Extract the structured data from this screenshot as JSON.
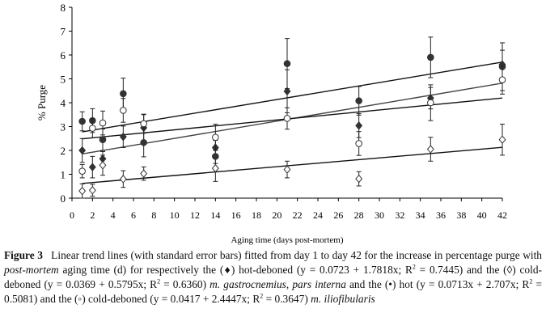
{
  "chart_data": {
    "type": "scatter",
    "xlabel": "Aging time (days post-mortem)",
    "ylabel": "% Purge",
    "xlim": [
      0,
      42
    ],
    "ylim": [
      0,
      8
    ],
    "xticks": [
      0,
      2,
      4,
      6,
      8,
      10,
      12,
      14,
      16,
      18,
      20,
      22,
      24,
      26,
      28,
      30,
      32,
      34,
      36,
      38,
      40,
      42
    ],
    "yticks": [
      0,
      1,
      2,
      3,
      4,
      5,
      6,
      7,
      8
    ],
    "grid": false,
    "error_bars": "standard error",
    "x": [
      1,
      2,
      3,
      5,
      7,
      14,
      21,
      28,
      35,
      42
    ],
    "series": [
      {
        "marker": "filled-diamond",
        "values": [
          2.0,
          1.3,
          1.65,
          2.57,
          2.95,
          2.12,
          4.48,
          3.04,
          4.19,
          5.6
        ],
        "se": [
          0.5,
          0.45,
          0.3,
          0.45,
          0.55,
          0.3,
          0.9,
          0.5,
          0.45,
          0.6
        ],
        "trend": {
          "slope": 0.0723,
          "intercept": 1.7818
        },
        "color": "#444444"
      },
      {
        "marker": "open-diamond",
        "values": [
          0.3,
          0.33,
          1.38,
          0.8,
          1.03,
          1.25,
          1.2,
          0.81,
          2.05,
          2.45
        ],
        "se": [
          0.3,
          0.25,
          0.42,
          0.35,
          0.28,
          0.55,
          0.35,
          0.3,
          0.5,
          0.65
        ],
        "trend": {
          "slope": 0.0369,
          "intercept": 0.5795
        },
        "color": "#111111"
      },
      {
        "marker": "filled-circle",
        "values": [
          3.22,
          3.25,
          2.45,
          4.38,
          2.33,
          1.75,
          5.64,
          4.08,
          5.9,
          5.51
        ],
        "se": [
          0.4,
          0.5,
          0.45,
          0.65,
          0.6,
          0.3,
          1.05,
          0.6,
          0.85,
          1.0
        ],
        "trend": {
          "slope": 0.0713,
          "intercept": 2.707
        },
        "color": "#111111"
      },
      {
        "marker": "open-circle",
        "values": [
          1.13,
          2.93,
          3.15,
          3.68,
          3.12,
          2.55,
          3.34,
          2.29,
          4.0,
          4.96
        ],
        "se": [
          0.28,
          0.4,
          0.5,
          0.5,
          0.4,
          0.55,
          0.45,
          0.5,
          0.75,
          0.6
        ],
        "trend": {
          "slope": 0.0417,
          "intercept": 2.4447
        },
        "color": "#111111"
      }
    ]
  },
  "caption": [
    {
      "text": "Figure 3",
      "style": "b"
    },
    {
      "text": "  Linear trend lines (with standard error bars) fitted from day 1 to day 42 for the increase in percentage purge with ",
      "style": ""
    },
    {
      "text": "post-mortem",
      "style": "i"
    },
    {
      "text": " aging time (d) for respectively the (♦) hot-deboned (y = 0.0723 + 1.7818x; R",
      "style": ""
    },
    {
      "text": "2",
      "style": "sup"
    },
    {
      "text": " = 0.7445) and the (◊) cold-deboned (y = 0.0369 + 0.5795x; R",
      "style": ""
    },
    {
      "text": "2",
      "style": "sup"
    },
    {
      "text": " = 0.6360) ",
      "style": ""
    },
    {
      "text": "m. gastrocnemius",
      "style": "i"
    },
    {
      "text": ", ",
      "style": ""
    },
    {
      "text": "pars interna",
      "style": "i"
    },
    {
      "text": " and the (•) hot (y = 0.0713x + 2.707x; R",
      "style": ""
    },
    {
      "text": "2",
      "style": "sup"
    },
    {
      "text": " = 0.5081) and the (◦) cold-deboned (y = 0.0417 + 2.4447x; R",
      "style": ""
    },
    {
      "text": "2",
      "style": "sup"
    },
    {
      "text": " = 0.3647) ",
      "style": ""
    },
    {
      "text": "m. iliofibularis",
      "style": "i"
    }
  ]
}
